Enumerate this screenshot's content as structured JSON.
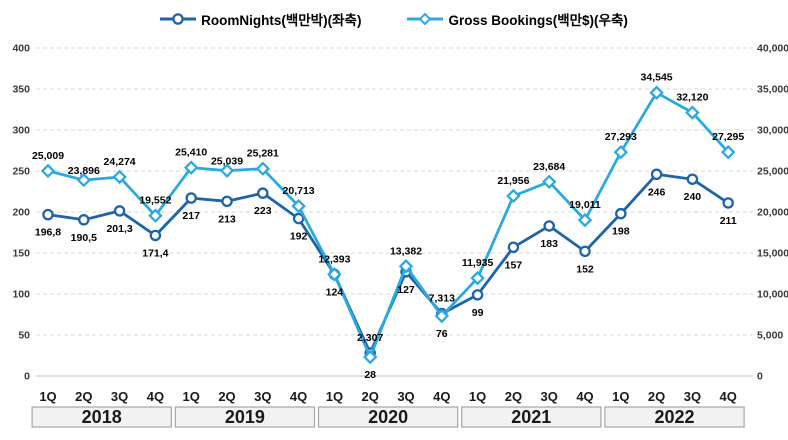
{
  "legend": {
    "items": [
      {
        "label": "RoomNights(백만박)(좌축)"
      },
      {
        "label": "Gross Bookings(백만$)(우축)"
      }
    ]
  },
  "chart_data": {
    "type": "line",
    "title": "",
    "legend_position": "top",
    "grid": {
      "horizontal": "dashed"
    },
    "categories_quarters": [
      "1Q",
      "2Q",
      "3Q",
      "4Q"
    ],
    "categories_years": [
      "2018",
      "2019",
      "2020",
      "2021",
      "2022"
    ],
    "series": [
      {
        "name": "RoomNights(백만박)(좌축)",
        "axis": "left",
        "marker": "circle",
        "color": "#1E63AC",
        "values": [
          196.8,
          190.5,
          201.3,
          171.4,
          217,
          213,
          223,
          192,
          124,
          28,
          127,
          76,
          99,
          157,
          183,
          152,
          198,
          246,
          240,
          211
        ],
        "labels": [
          "196,8",
          "190,5",
          "201,3",
          "171,4",
          "217",
          "213",
          "223",
          "192",
          "124",
          "28",
          "127",
          "76",
          "99",
          "157",
          "183",
          "152",
          "198",
          "246",
          "240",
          "211"
        ]
      },
      {
        "name": "Gross Bookings(백만$)(우축)",
        "axis": "right",
        "marker": "diamond",
        "color": "#2BA9E1",
        "values": [
          25009,
          23896,
          24274,
          19552,
          25410,
          25039,
          25281,
          20713,
          12393,
          2307,
          13382,
          7313,
          11935,
          21956,
          23684,
          19011,
          27293,
          34545,
          32120,
          27295
        ],
        "labels": [
          "25,009",
          "23,896",
          "24,274",
          "19,552",
          "25,410",
          "25,039",
          "25,281",
          "20,713",
          "12,393",
          "2,307",
          "13,382",
          "7,313",
          "11,935",
          "21,956",
          "23,684",
          "19,011",
          "27,293",
          "34,545",
          "32,120",
          "27,295"
        ]
      }
    ],
    "left_axis": {
      "min": 0,
      "max": 400,
      "step": 50,
      "tick_labels": [
        "0",
        "50",
        "100",
        "150",
        "200",
        "250",
        "300",
        "350",
        "400"
      ]
    },
    "right_axis": {
      "min": 0,
      "max": 40000,
      "step": 5000,
      "tick_labels": [
        "0",
        "5,000",
        "10,000",
        "15,000",
        "20,000",
        "25,000",
        "30,000",
        "35,000",
        "40,000"
      ]
    },
    "colors": {
      "room_nights_line": "#1E63AC",
      "gross_bookings_line": "#2BA9E1",
      "marker_fill": "#FFFFFF",
      "gridline": "#D9D9D9",
      "axis_line": "#BFBFBF",
      "year_band_fill": "#F2F2F2",
      "year_band_border": "#A6A6A6",
      "data_label_text": "#000000",
      "tick_text": "#3A3A3A"
    }
  }
}
